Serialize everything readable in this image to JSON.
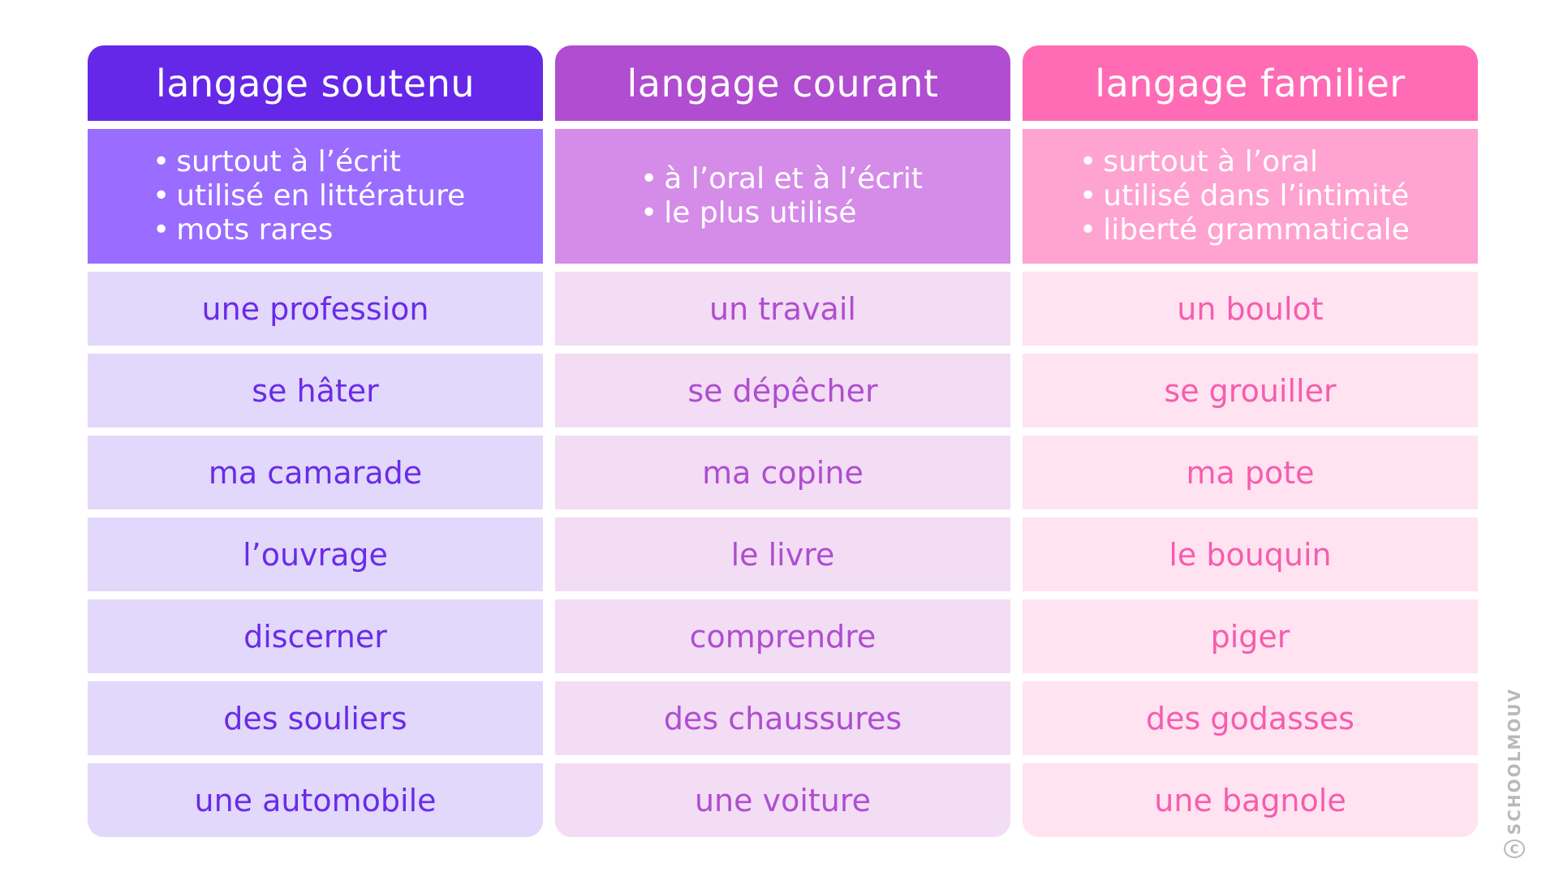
{
  "columns": [
    {
      "header": "langage soutenu",
      "description": [
        "surtout à l’écrit",
        "utilisé en littérature",
        "mots rares"
      ],
      "words": [
        "une profession",
        "se hâter",
        "ma camarade",
        "l’ouvrage",
        "discerner",
        "des souliers",
        "une automobile"
      ]
    },
    {
      "header": "langage courant",
      "description": [
        "à l’oral et à l’écrit",
        "le plus utilisé"
      ],
      "words": [
        "un travail",
        "se dépêcher",
        "ma copine",
        "le livre",
        "comprendre",
        "des chaussures",
        "une voiture"
      ]
    },
    {
      "header": "langage familier",
      "description": [
        "surtout à l’oral",
        "utilisé dans l’intimité",
        "liberté grammaticale"
      ],
      "words": [
        "un boulot",
        "se grouiller",
        "ma pote",
        "le bouquin",
        "piger",
        "des godasses",
        "une bagnole"
      ]
    }
  ],
  "colors": {
    "soutenu": {
      "header": "#6528E8",
      "description": "#9A6CFF",
      "cell": "#E2D8FB",
      "text": "#6A2BE8"
    },
    "courant": {
      "header": "#B04DD0",
      "description": "#D48CE8",
      "cell": "#F2DDF5",
      "text": "#B04DD0"
    },
    "familier": {
      "header": "#FF6BB4",
      "description": "#FFA3D0",
      "cell": "#FFE3F0",
      "text": "#F55DAE"
    }
  },
  "watermark": {
    "text": "SCHOOLMOUV",
    "symbol": "C"
  }
}
